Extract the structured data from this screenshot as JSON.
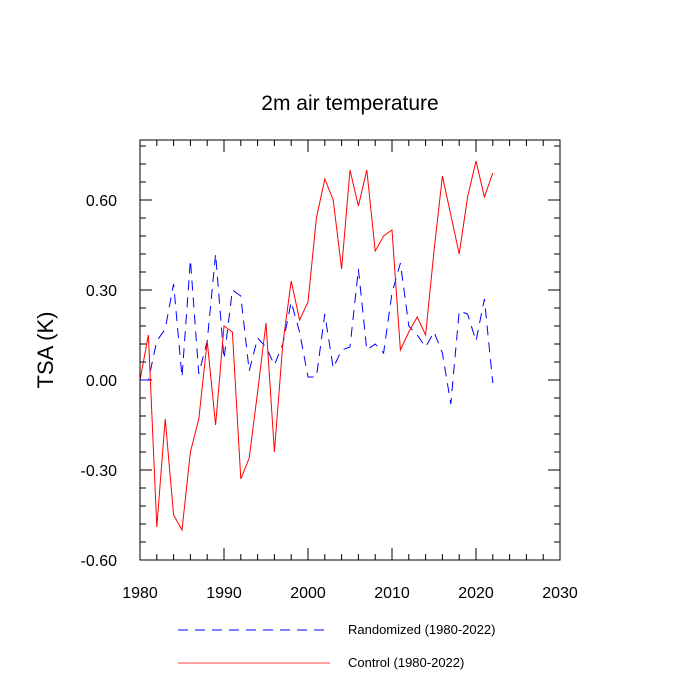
{
  "chart_data": {
    "type": "line",
    "title": "2m air temperature",
    "xlabel": "",
    "ylabel": "TSA  (K)",
    "xlim": [
      1980,
      2030
    ],
    "ylim": [
      -0.6,
      0.8
    ],
    "x_ticks": [
      1980,
      1990,
      2000,
      2010,
      2020,
      2030
    ],
    "x_tick_labels": [
      "1980",
      "1990",
      "2000",
      "2010",
      "2020",
      "2030"
    ],
    "y_ticks": [
      -0.6,
      -0.3,
      0.0,
      0.3,
      0.6
    ],
    "y_tick_labels": [
      "-0.60",
      "-0.30",
      "0.00",
      "0.30",
      "0.60"
    ],
    "grid": false,
    "legend_position": "bottom",
    "x": [
      1980,
      1981,
      1982,
      1983,
      1984,
      1985,
      1986,
      1987,
      1988,
      1989,
      1990,
      1991,
      1992,
      1993,
      1994,
      1995,
      1996,
      1997,
      1998,
      1999,
      2000,
      2001,
      2002,
      2003,
      2004,
      2005,
      2006,
      2007,
      2008,
      2009,
      2010,
      2011,
      2012,
      2013,
      2014,
      2015,
      2016,
      2017,
      2018,
      2019,
      2020,
      2021,
      2022
    ],
    "series": [
      {
        "name": "Randomized (1980-2022)",
        "color": "#0000ff",
        "dash": "dashed",
        "values": [
          0.0,
          0.0,
          0.13,
          0.17,
          0.32,
          0.01,
          0.4,
          0.02,
          0.13,
          0.42,
          0.07,
          0.3,
          0.28,
          0.03,
          0.14,
          0.11,
          0.05,
          0.12,
          0.26,
          0.16,
          0.01,
          0.01,
          0.22,
          0.04,
          0.1,
          0.11,
          0.37,
          0.1,
          0.12,
          0.09,
          0.29,
          0.39,
          0.18,
          0.15,
          0.11,
          0.16,
          0.09,
          -0.08,
          0.23,
          0.22,
          0.13,
          0.27,
          -0.01
        ]
      },
      {
        "name": "Control (1980-2022)",
        "color": "#ff0000",
        "dash": "solid",
        "values": [
          0.0,
          0.15,
          -0.49,
          -0.13,
          -0.45,
          -0.5,
          -0.24,
          -0.13,
          0.13,
          -0.15,
          0.18,
          0.16,
          -0.33,
          -0.26,
          -0.04,
          0.19,
          -0.24,
          0.12,
          0.33,
          0.2,
          0.26,
          0.54,
          0.67,
          0.6,
          0.37,
          0.7,
          0.58,
          0.7,
          0.43,
          0.48,
          0.5,
          0.1,
          0.16,
          0.21,
          0.15,
          0.43,
          0.68,
          0.55,
          0.42,
          0.61,
          0.73,
          0.61,
          0.69
        ]
      }
    ]
  }
}
